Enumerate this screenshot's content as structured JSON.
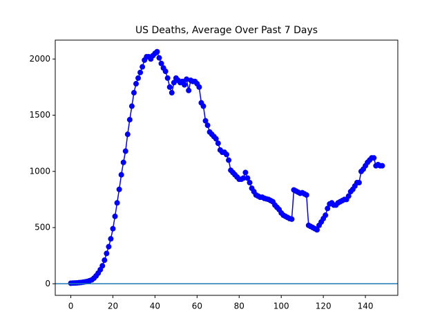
{
  "chart_data": {
    "type": "line",
    "title": "US Deaths, Average Over Past 7 Days",
    "x": [
      0,
      1,
      2,
      3,
      4,
      5,
      6,
      7,
      8,
      9,
      10,
      11,
      12,
      13,
      14,
      15,
      16,
      17,
      18,
      19,
      20,
      21,
      22,
      23,
      24,
      25,
      26,
      27,
      28,
      29,
      30,
      31,
      32,
      33,
      34,
      35,
      36,
      37,
      38,
      39,
      40,
      41,
      42,
      43,
      44,
      45,
      46,
      47,
      48,
      49,
      50,
      51,
      52,
      53,
      54,
      55,
      56,
      57,
      58,
      59,
      60,
      61,
      62,
      63,
      64,
      65,
      66,
      67,
      68,
      69,
      70,
      71,
      72,
      73,
      74,
      75,
      76,
      77,
      78,
      79,
      80,
      81,
      82,
      83,
      84,
      85,
      86,
      87,
      88,
      89,
      90,
      91,
      92,
      93,
      94,
      95,
      96,
      97,
      98,
      99,
      100,
      101,
      102,
      103,
      104,
      105,
      106,
      107,
      108,
      109,
      110,
      111,
      112,
      113,
      114,
      115,
      116,
      117,
      118,
      119,
      120,
      121,
      122,
      123,
      124,
      125,
      126,
      127,
      128,
      129,
      130,
      131,
      132,
      133,
      134,
      135,
      136,
      137,
      138,
      139,
      140,
      141,
      142,
      143,
      144,
      145,
      146,
      147,
      148
    ],
    "series": [
      {
        "color": "#0000ff",
        "values": [
          5,
          6,
          7,
          8,
          10,
          12,
          15,
          18,
          22,
          28,
          35,
          50,
          70,
          95,
          125,
          160,
          210,
          270,
          330,
          400,
          490,
          600,
          720,
          840,
          970,
          1080,
          1180,
          1330,
          1460,
          1580,
          1700,
          1780,
          1830,
          1880,
          1930,
          1990,
          2020,
          2020,
          2000,
          2030,
          2050,
          2065,
          2010,
          1960,
          1920,
          1890,
          1830,
          1750,
          1700,
          1790,
          1830,
          1810,
          1790,
          1800,
          1770,
          1820,
          1720,
          1810,
          1800,
          1800,
          1780,
          1750,
          1610,
          1580,
          1450,
          1410,
          1350,
          1330,
          1310,
          1290,
          1250,
          1190,
          1170,
          1170,
          1150,
          1100,
          1010,
          990,
          970,
          950,
          930,
          930,
          940,
          990,
          940,
          900,
          850,
          820,
          790,
          780,
          770,
          770,
          760,
          755,
          750,
          740,
          730,
          700,
          680,
          660,
          630,
          610,
          600,
          590,
          580,
          575,
          835,
          825,
          815,
          805,
          810,
          800,
          790,
          520,
          510,
          500,
          490,
          480,
          520,
          550,
          580,
          610,
          670,
          710,
          720,
          700,
          700,
          720,
          730,
          740,
          750,
          750,
          780,
          820,
          840,
          870,
          900,
          900,
          1000,
          1020,
          1050,
          1080,
          1100,
          1120,
          1120,
          1050,
          1060,
          1050,
          1050
        ]
      }
    ],
    "hline": {
      "value": 0,
      "color": "#1f77b4"
    },
    "xlim": [
      -7.4,
      155.4
    ],
    "xticks": [
      0,
      20,
      40,
      60,
      80,
      100,
      120,
      140
    ],
    "ylim": [
      -103,
      2168
    ],
    "yticks": [
      0,
      500,
      1000,
      1500,
      2000
    ],
    "grid": false
  }
}
